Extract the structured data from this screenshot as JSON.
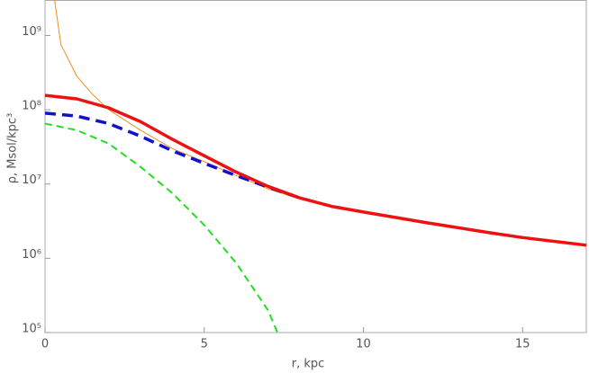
{
  "chart_data": {
    "type": "line",
    "xlabel": "r, kpc",
    "ylabel": "ρ, Msol/kpc³",
    "xlim": [
      0,
      17
    ],
    "xticks": [
      0,
      5,
      10,
      15
    ],
    "ylog": true,
    "ylim": [
      100000,
      3000000000
    ],
    "yticks": [
      {
        "value": 100000,
        "label": "10⁵"
      },
      {
        "value": 1000000,
        "label": "10⁶"
      },
      {
        "value": 10000000,
        "label": "10⁷"
      },
      {
        "value": 100000000,
        "label": "10⁸"
      },
      {
        "value": 1000000000,
        "label": "10⁹"
      }
    ],
    "series": [
      {
        "color": "#f0901e",
        "width": 1,
        "dash": false,
        "x": [
          0.3,
          0.5,
          1,
          1.5,
          2,
          3,
          4,
          5,
          6,
          7,
          8,
          10,
          12,
          14,
          15,
          17
        ],
        "values": [
          3000000000,
          750000000,
          280000000,
          160000000,
          100000000,
          53000000,
          30000000,
          20000000,
          13000000,
          8600000,
          6300000,
          4200000,
          3000000,
          2200000,
          1900000,
          1500000
        ]
      },
      {
        "color": "#22dd22",
        "width": 2,
        "dash": true,
        "x": [
          0,
          1,
          2,
          3,
          4,
          5,
          6,
          7,
          7.3
        ],
        "values": [
          65000000,
          53000000,
          35000000,
          17000000,
          7500000,
          2800000,
          870000,
          200000,
          100000
        ]
      },
      {
        "color": "#1111cc",
        "width": 3.5,
        "dash": true,
        "x": [
          0,
          1,
          2,
          3,
          4,
          5,
          6,
          7,
          8
        ],
        "values": [
          90000000,
          82000000,
          65000000,
          44000000,
          28000000,
          19000000,
          13000000,
          9100000,
          6500000
        ]
      },
      {
        "color": "#ee1111",
        "width": 3.5,
        "dash": false,
        "x": [
          0,
          1,
          2,
          3,
          4,
          5,
          6,
          7,
          8,
          9,
          10,
          12,
          14,
          15,
          17
        ],
        "values": [
          156000000,
          140000000,
          106000000,
          69000000,
          40000000,
          24000000,
          14500000,
          9300000,
          6500000,
          5000000,
          4200000,
          3000000,
          2200000,
          1900000,
          1500000
        ]
      }
    ]
  }
}
